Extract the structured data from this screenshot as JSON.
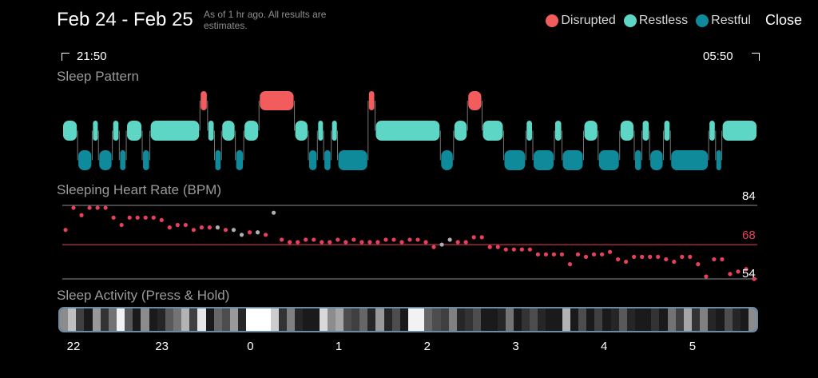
{
  "header": {
    "title": "Feb 24 - Feb 25",
    "subtitle": "As of 1 hr ago. All results are estimates."
  },
  "legend": [
    {
      "label": "Disrupted",
      "color": "#f25c5c"
    },
    {
      "label": "Restless",
      "color": "#5ed6c6"
    },
    {
      "label": "Restful",
      "color": "#0e8a9b"
    }
  ],
  "close_label": "Close",
  "range": {
    "start": "21:50",
    "end": "05:50"
  },
  "sleep_pattern": {
    "label": "Sleep Pattern",
    "segments": [
      [
        "restless",
        0.0,
        0.022
      ],
      [
        "restful",
        0.022,
        0.043
      ],
      [
        "restless",
        0.043,
        0.052
      ],
      [
        "restful",
        0.052,
        0.072
      ],
      [
        "restless",
        0.072,
        0.082
      ],
      [
        "restful",
        0.082,
        0.092
      ],
      [
        "restless",
        0.092,
        0.115
      ],
      [
        "restful",
        0.115,
        0.126
      ],
      [
        "restless",
        0.126,
        0.198
      ],
      [
        "disrupted",
        0.198,
        0.209
      ],
      [
        "restless",
        0.209,
        0.219
      ],
      [
        "restful",
        0.219,
        0.229
      ],
      [
        "restless",
        0.229,
        0.249
      ],
      [
        "restful",
        0.249,
        0.261
      ],
      [
        "restless",
        0.261,
        0.283
      ],
      [
        "disrupted",
        0.283,
        0.334
      ],
      [
        "restless",
        0.334,
        0.354
      ],
      [
        "restful",
        0.354,
        0.367
      ],
      [
        "restless",
        0.367,
        0.376
      ],
      [
        "restful",
        0.376,
        0.387
      ],
      [
        "restless",
        0.387,
        0.396
      ],
      [
        "restful",
        0.396,
        0.44
      ],
      [
        "disrupted",
        0.44,
        0.45
      ],
      [
        "restless",
        0.45,
        0.544
      ],
      [
        "restful",
        0.544,
        0.563
      ],
      [
        "restless",
        0.563,
        0.583
      ],
      [
        "disrupted",
        0.583,
        0.604
      ],
      [
        "restless",
        0.604,
        0.635
      ],
      [
        "restful",
        0.635,
        0.667
      ],
      [
        "restless",
        0.667,
        0.677
      ],
      [
        "restful",
        0.677,
        0.708
      ],
      [
        "restless",
        0.708,
        0.719
      ],
      [
        "restful",
        0.719,
        0.75
      ],
      [
        "restless",
        0.75,
        0.771
      ],
      [
        "restful",
        0.771,
        0.802
      ],
      [
        "restless",
        0.802,
        0.823
      ],
      [
        "restful",
        0.823,
        0.834
      ],
      [
        "restless",
        0.834,
        0.845
      ],
      [
        "restful",
        0.845,
        0.865
      ],
      [
        "restless",
        0.865,
        0.875
      ],
      [
        "restful",
        0.875,
        0.93
      ],
      [
        "restless",
        0.93,
        0.94
      ],
      [
        "restful",
        0.94,
        0.949
      ],
      [
        "restless",
        0.949,
        1.0
      ]
    ]
  },
  "heart_rate": {
    "label": "Sleeping Heart Rate (BPM)",
    "max": 84,
    "avg": 68,
    "min": 54,
    "max_label": "84",
    "avg_label": "68",
    "min_label": "54",
    "values": [
      74,
      83,
      80,
      83,
      83,
      83,
      79,
      76,
      79,
      79,
      79,
      79,
      78,
      75,
      76,
      76,
      74,
      75,
      75,
      75,
      74,
      74,
      72,
      73,
      73,
      72,
      81,
      70,
      69,
      69,
      70,
      70,
      69,
      69,
      70,
      69,
      70,
      69,
      69,
      69,
      70,
      70,
      69,
      70,
      70,
      69,
      67,
      68,
      70,
      69,
      69,
      71,
      71,
      67,
      67,
      66,
      66,
      66,
      66,
      64,
      64,
      64,
      64,
      60,
      64,
      63,
      64,
      64,
      65,
      62,
      61,
      63,
      63,
      63,
      63,
      62,
      61,
      63,
      63,
      60,
      55,
      62,
      62,
      56,
      57,
      58,
      54
    ],
    "gray_indices": [
      19,
      21,
      22,
      24,
      26,
      47,
      48
    ]
  },
  "activity": {
    "label": "Sleep Activity (Press & Hold)",
    "levels": [
      0.55,
      0.75,
      0.25,
      0.1,
      0.6,
      0.2,
      0.45,
      0.95,
      0.35,
      0.1,
      0.55,
      0.1,
      0.15,
      0.35,
      0.45,
      0.7,
      0.25,
      0.9,
      0.1,
      0.4,
      0.3,
      0.6,
      0.15,
      1.0,
      1.0,
      1.0,
      0.8,
      0.2,
      0.5,
      0.15,
      0.1,
      0.1,
      0.85,
      0.55,
      0.65,
      0.3,
      0.25,
      0.4,
      0.15,
      0.6,
      0.15,
      0.3,
      0.1,
      0.95,
      0.95,
      0.4,
      0.3,
      0.25,
      0.5,
      0.15,
      0.2,
      0.3,
      0.1,
      0.1,
      0.15,
      0.45,
      0.1,
      0.2,
      0.3,
      0.15,
      0.1,
      0.1,
      0.7,
      0.1,
      0.3,
      0.1,
      0.25,
      0.1,
      0.15,
      0.35,
      0.15,
      0.1,
      0.1,
      0.2,
      0.1,
      0.45,
      0.25,
      0.65,
      0.2,
      0.5,
      0.15,
      0.1,
      0.3,
      0.15,
      0.1,
      0.55
    ]
  },
  "x_axis": {
    "ticks": [
      "22",
      "23",
      "0",
      "1",
      "2",
      "3",
      "4",
      "5"
    ]
  }
}
